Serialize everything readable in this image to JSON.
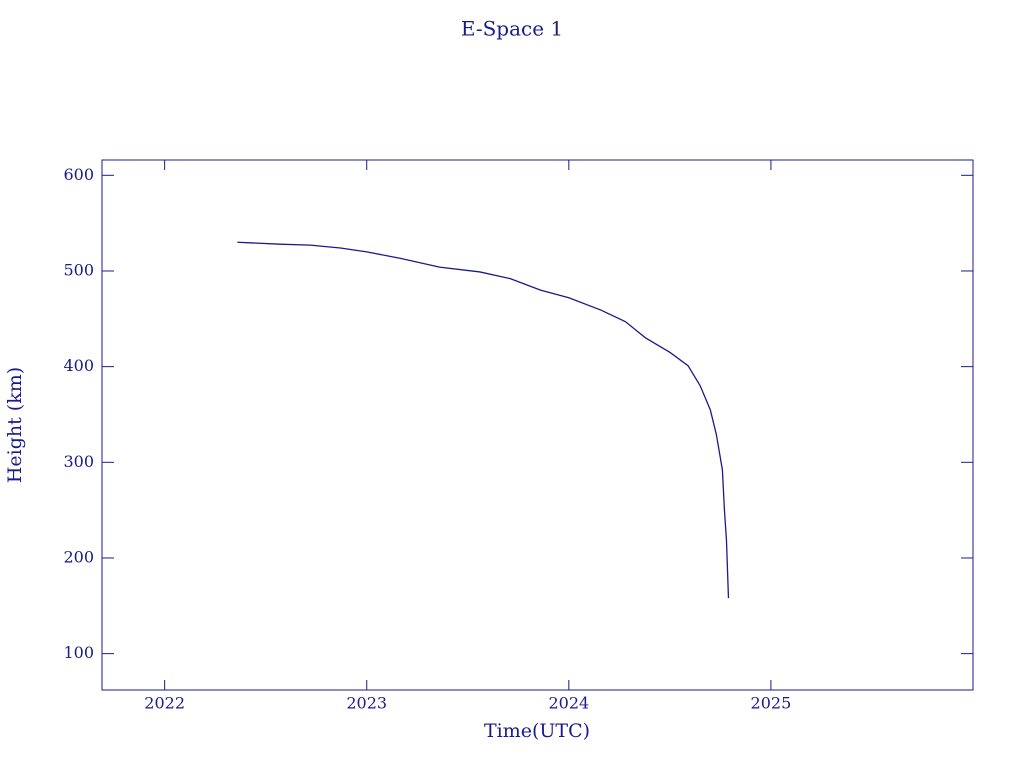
{
  "chart_data": {
    "type": "line",
    "title": "E-Space 1",
    "x_label": "Time(UTC)",
    "y_label": "Height (km)",
    "color": "#1a1a8c",
    "x": [
      2022.36,
      2022.57,
      2022.72,
      2022.87,
      2023.0,
      2023.17,
      2023.36,
      2023.56,
      2023.71,
      2023.86,
      2024.0,
      2024.16,
      2024.28,
      2024.38,
      2024.5,
      2024.59,
      2024.65,
      2024.7,
      2024.73,
      2024.76,
      2024.77,
      2024.78,
      2024.79
    ],
    "values": [
      530,
      528,
      527,
      524,
      520,
      513,
      504,
      499,
      492,
      480,
      472,
      459,
      447,
      430,
      415,
      401,
      380,
      355,
      329,
      292,
      250,
      219,
      158
    ],
    "xlim": [
      2021.69,
      2026.0
    ],
    "ylim": [
      62,
      616
    ],
    "xticks": [
      2022,
      2023,
      2024,
      2025
    ],
    "yticks": [
      100,
      200,
      300,
      400,
      500,
      600
    ]
  }
}
